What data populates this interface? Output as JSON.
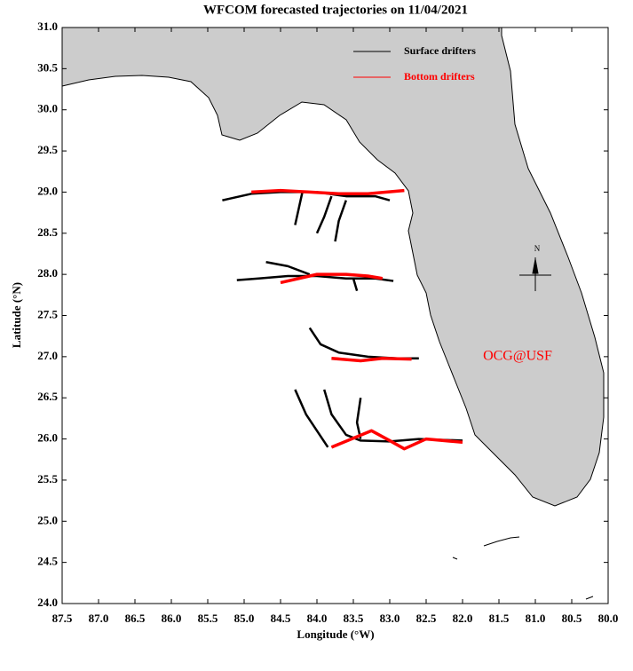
{
  "chart_data": {
    "type": "trajectory",
    "title": "WFCOM forecasted trajectories on 11/04/2021",
    "x_label": "Longitude (°W)",
    "y_label": "Latitude (°N)",
    "annotation": "OCG@USF",
    "compass_label": "N",
    "xlim": [
      87.5,
      80.0
    ],
    "xticks": [
      87.5,
      {
        "value": 87,
        "label": "87.0"
      },
      86.5,
      {
        "value": 86,
        "label": "86.0"
      },
      85.5,
      {
        "value": 85,
        "label": "85.0"
      },
      84.5,
      {
        "value": 84,
        "label": "84.0"
      },
      83.5,
      {
        "value": 83,
        "label": "83.0"
      },
      82.5,
      {
        "value": 82,
        "label": "82.0"
      },
      81.5,
      {
        "value": 81,
        "label": "81.0"
      },
      80.5,
      {
        "value": 80,
        "label": "80.0"
      }
    ],
    "ylim": [
      24.0,
      31.0
    ],
    "yticks": [
      {
        "value": 24,
        "label": "24.0"
      },
      24.5,
      {
        "value": 25,
        "label": "25.0"
      },
      25.5,
      {
        "value": 26,
        "label": "26.0"
      },
      26.5,
      {
        "value": 27,
        "label": "27.0"
      },
      27.5,
      {
        "value": 28,
        "label": "28.0"
      },
      28.5,
      {
        "value": 29,
        "label": "29.0"
      },
      29.5,
      {
        "value": 30,
        "label": "30.0"
      },
      30.5,
      {
        "value": 31,
        "label": "31.0"
      }
    ],
    "series": [
      {
        "name": "Surface drifters",
        "color": "#000000",
        "tracks": [
          {
            "x": [
              85.3,
              84.9,
              84.5,
              84.0,
              83.6,
              83.2,
              83.0
            ],
            "y": [
              28.9,
              28.98,
              29.0,
              29.0,
              28.95,
              28.95,
              28.9
            ]
          },
          {
            "x": [
              84.2,
              84.25,
              84.3
            ],
            "y": [
              29.0,
              28.8,
              28.6
            ]
          },
          {
            "x": [
              83.8,
              83.9,
              84.0
            ],
            "y": [
              28.95,
              28.7,
              28.5
            ]
          },
          {
            "x": [
              83.6,
              83.7,
              83.75
            ],
            "y": [
              28.9,
              28.65,
              28.4
            ]
          },
          {
            "x": [
              85.1,
              84.8,
              84.4,
              84.0,
              83.6,
              83.2,
              82.95
            ],
            "y": [
              27.93,
              27.95,
              27.98,
              27.98,
              27.95,
              27.95,
              27.92
            ]
          },
          {
            "x": [
              84.7,
              84.4,
              84.1
            ],
            "y": [
              28.15,
              28.1,
              28.0
            ]
          },
          {
            "x": [
              83.5,
              83.45
            ],
            "y": [
              27.95,
              27.8
            ]
          },
          {
            "x": [
              84.1,
              83.95,
              83.7,
              83.3,
              82.9,
              82.6
            ],
            "y": [
              27.35,
              27.15,
              27.05,
              27.0,
              26.98,
              26.98
            ]
          },
          {
            "x": [
              84.3,
              84.15,
              84.0,
              83.85
            ],
            "y": [
              26.6,
              26.3,
              26.1,
              25.9
            ]
          },
          {
            "x": [
              83.9,
              83.8,
              83.6,
              83.4,
              83.0,
              82.6,
              82.0
            ],
            "y": [
              26.6,
              26.3,
              26.05,
              25.98,
              25.97,
              26.0,
              25.98
            ]
          },
          {
            "x": [
              83.4,
              83.45,
              83.4
            ],
            "y": [
              26.5,
              26.2,
              26.0
            ]
          }
        ]
      },
      {
        "name": "Bottom drifters",
        "color": "#ff0000",
        "tracks": [
          {
            "x": [
              84.9,
              84.5,
              84.1,
              83.7,
              83.3,
              82.8
            ],
            "y": [
              29.0,
              29.02,
              29.0,
              28.98,
              28.98,
              29.02
            ]
          },
          {
            "x": [
              84.5,
              84.0,
              83.6,
              83.3,
              83.1
            ],
            "y": [
              27.9,
              28.0,
              28.0,
              27.98,
              27.95
            ]
          },
          {
            "x": [
              83.8,
              83.4,
              83.1,
              82.7
            ],
            "y": [
              26.98,
              26.95,
              26.98,
              26.97
            ]
          },
          {
            "x": [
              83.8,
              83.25,
              83.0,
              82.8,
              82.5,
              82.0
            ],
            "y": [
              25.9,
              26.1,
              25.98,
              25.88,
              26.0,
              25.96
            ]
          }
        ]
      }
    ]
  }
}
